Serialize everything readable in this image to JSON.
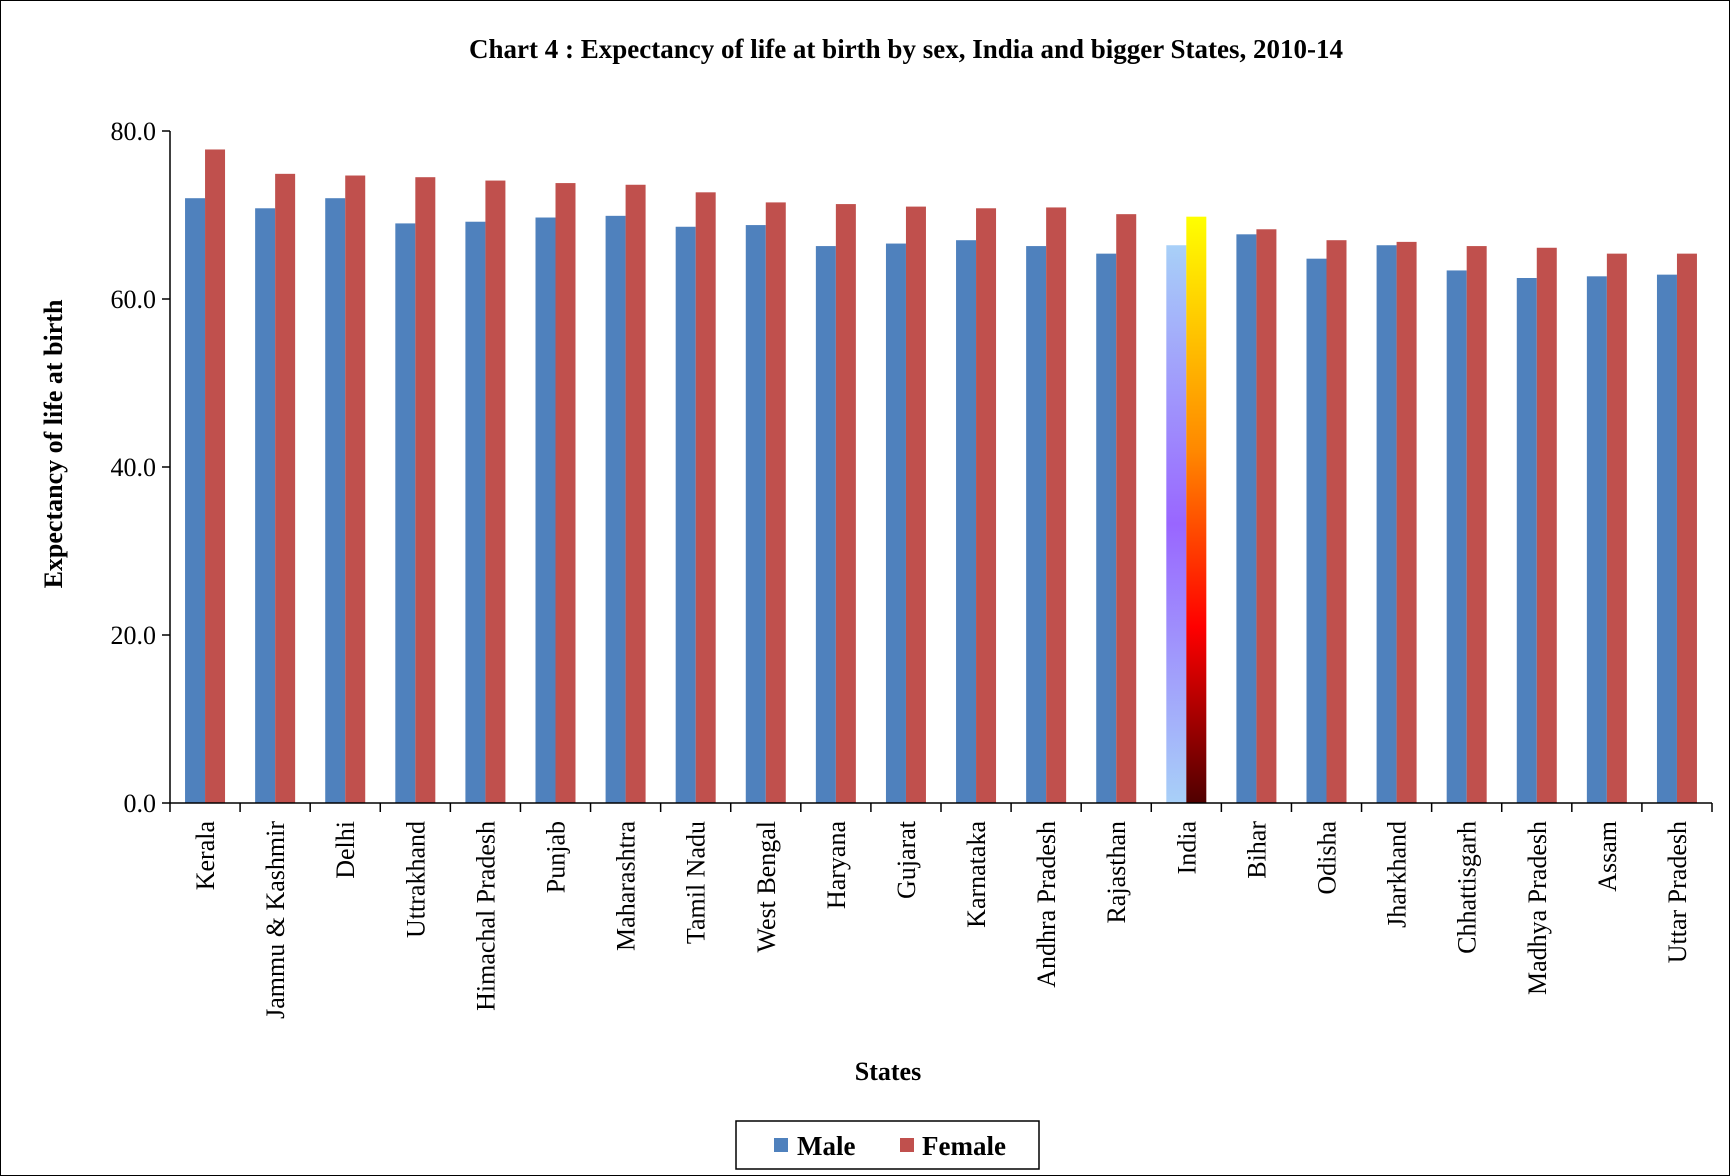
{
  "chart_data": {
    "type": "bar",
    "title": "Chart  4 : Expectancy  of life at birth  by sex, India  and bigger States, 2010-14",
    "xlabel": "States",
    "ylabel": "Expectancy of life at birth",
    "ylim": [
      0,
      80
    ],
    "yticks": [
      "0.0",
      "20.0",
      "40.0",
      "60.0",
      "80.0"
    ],
    "grid": false,
    "legend_position": "bottom-center",
    "categories": [
      "Kerala",
      "Jammu & Kashmir",
      "Delhi",
      "Uttrakhand",
      "Himachal Pradesh",
      "Punjab",
      "Maharashtra",
      "Tamil Nadu",
      "West Bengal",
      "Haryana",
      "Gujarat",
      "Karnataka",
      "Andhra Pradesh",
      "Rajasthan",
      "India",
      "Bihar",
      "Odisha",
      "Jharkhand",
      "Chhattisgarh",
      "Madhya Pradesh",
      "Assam",
      "Uttar Pradesh"
    ],
    "highlight_category": "India",
    "series": [
      {
        "name": "Male",
        "color": "#4F81BD",
        "values": [
          72.0,
          70.8,
          72.0,
          69.0,
          69.2,
          69.7,
          69.9,
          68.6,
          68.8,
          66.3,
          66.6,
          67.0,
          66.3,
          65.4,
          66.4,
          67.7,
          64.8,
          66.4,
          63.4,
          62.5,
          62.7,
          62.9
        ]
      },
      {
        "name": "Female",
        "color": "#C0504D",
        "values": [
          77.8,
          74.9,
          74.7,
          74.5,
          74.1,
          73.8,
          73.6,
          72.7,
          71.5,
          71.3,
          71.0,
          70.8,
          70.9,
          70.1,
          69.8,
          68.3,
          67.0,
          66.8,
          66.3,
          66.1,
          65.4,
          65.4
        ]
      }
    ]
  }
}
